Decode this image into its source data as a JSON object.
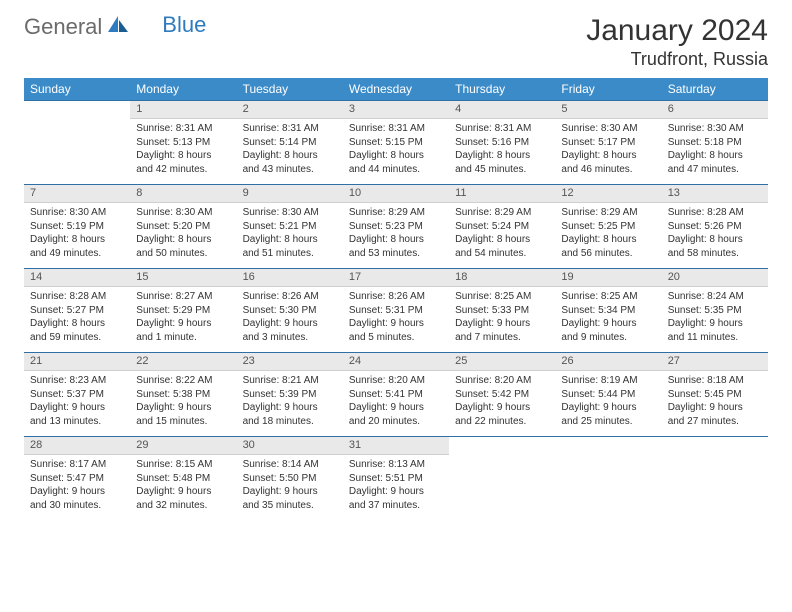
{
  "brand": {
    "part1": "General",
    "part2": "Blue"
  },
  "title": "January 2024",
  "location": "Trudfront, Russia",
  "weekdays": [
    "Sunday",
    "Monday",
    "Tuesday",
    "Wednesday",
    "Thursday",
    "Friday",
    "Saturday"
  ],
  "colors": {
    "header_bg": "#3b8bc9",
    "header_text": "#ffffff",
    "dayrow_bg": "#e9e9e9",
    "dayrow_border": "#2f6fa6",
    "text": "#333333",
    "logo_gray": "#6b6b6b",
    "logo_blue": "#2f7bbf"
  },
  "typography": {
    "title_fontsize": 30,
    "location_fontsize": 18,
    "weekday_fontsize": 12,
    "daynum_fontsize": 11,
    "cell_fontsize": 10
  },
  "calendar": {
    "type": "table",
    "first_day_index": 1,
    "days_in_month": 31,
    "days": [
      {
        "n": 1,
        "sunrise": "8:31 AM",
        "sunset": "5:13 PM",
        "daylight": "8 hours and 42 minutes."
      },
      {
        "n": 2,
        "sunrise": "8:31 AM",
        "sunset": "5:14 PM",
        "daylight": "8 hours and 43 minutes."
      },
      {
        "n": 3,
        "sunrise": "8:31 AM",
        "sunset": "5:15 PM",
        "daylight": "8 hours and 44 minutes."
      },
      {
        "n": 4,
        "sunrise": "8:31 AM",
        "sunset": "5:16 PM",
        "daylight": "8 hours and 45 minutes."
      },
      {
        "n": 5,
        "sunrise": "8:30 AM",
        "sunset": "5:17 PM",
        "daylight": "8 hours and 46 minutes."
      },
      {
        "n": 6,
        "sunrise": "8:30 AM",
        "sunset": "5:18 PM",
        "daylight": "8 hours and 47 minutes."
      },
      {
        "n": 7,
        "sunrise": "8:30 AM",
        "sunset": "5:19 PM",
        "daylight": "8 hours and 49 minutes."
      },
      {
        "n": 8,
        "sunrise": "8:30 AM",
        "sunset": "5:20 PM",
        "daylight": "8 hours and 50 minutes."
      },
      {
        "n": 9,
        "sunrise": "8:30 AM",
        "sunset": "5:21 PM",
        "daylight": "8 hours and 51 minutes."
      },
      {
        "n": 10,
        "sunrise": "8:29 AM",
        "sunset": "5:23 PM",
        "daylight": "8 hours and 53 minutes."
      },
      {
        "n": 11,
        "sunrise": "8:29 AM",
        "sunset": "5:24 PM",
        "daylight": "8 hours and 54 minutes."
      },
      {
        "n": 12,
        "sunrise": "8:29 AM",
        "sunset": "5:25 PM",
        "daylight": "8 hours and 56 minutes."
      },
      {
        "n": 13,
        "sunrise": "8:28 AM",
        "sunset": "5:26 PM",
        "daylight": "8 hours and 58 minutes."
      },
      {
        "n": 14,
        "sunrise": "8:28 AM",
        "sunset": "5:27 PM",
        "daylight": "8 hours and 59 minutes."
      },
      {
        "n": 15,
        "sunrise": "8:27 AM",
        "sunset": "5:29 PM",
        "daylight": "9 hours and 1 minute."
      },
      {
        "n": 16,
        "sunrise": "8:26 AM",
        "sunset": "5:30 PM",
        "daylight": "9 hours and 3 minutes."
      },
      {
        "n": 17,
        "sunrise": "8:26 AM",
        "sunset": "5:31 PM",
        "daylight": "9 hours and 5 minutes."
      },
      {
        "n": 18,
        "sunrise": "8:25 AM",
        "sunset": "5:33 PM",
        "daylight": "9 hours and 7 minutes."
      },
      {
        "n": 19,
        "sunrise": "8:25 AM",
        "sunset": "5:34 PM",
        "daylight": "9 hours and 9 minutes."
      },
      {
        "n": 20,
        "sunrise": "8:24 AM",
        "sunset": "5:35 PM",
        "daylight": "9 hours and 11 minutes."
      },
      {
        "n": 21,
        "sunrise": "8:23 AM",
        "sunset": "5:37 PM",
        "daylight": "9 hours and 13 minutes."
      },
      {
        "n": 22,
        "sunrise": "8:22 AM",
        "sunset": "5:38 PM",
        "daylight": "9 hours and 15 minutes."
      },
      {
        "n": 23,
        "sunrise": "8:21 AM",
        "sunset": "5:39 PM",
        "daylight": "9 hours and 18 minutes."
      },
      {
        "n": 24,
        "sunrise": "8:20 AM",
        "sunset": "5:41 PM",
        "daylight": "9 hours and 20 minutes."
      },
      {
        "n": 25,
        "sunrise": "8:20 AM",
        "sunset": "5:42 PM",
        "daylight": "9 hours and 22 minutes."
      },
      {
        "n": 26,
        "sunrise": "8:19 AM",
        "sunset": "5:44 PM",
        "daylight": "9 hours and 25 minutes."
      },
      {
        "n": 27,
        "sunrise": "8:18 AM",
        "sunset": "5:45 PM",
        "daylight": "9 hours and 27 minutes."
      },
      {
        "n": 28,
        "sunrise": "8:17 AM",
        "sunset": "5:47 PM",
        "daylight": "9 hours and 30 minutes."
      },
      {
        "n": 29,
        "sunrise": "8:15 AM",
        "sunset": "5:48 PM",
        "daylight": "9 hours and 32 minutes."
      },
      {
        "n": 30,
        "sunrise": "8:14 AM",
        "sunset": "5:50 PM",
        "daylight": "9 hours and 35 minutes."
      },
      {
        "n": 31,
        "sunrise": "8:13 AM",
        "sunset": "5:51 PM",
        "daylight": "9 hours and 37 minutes."
      }
    ],
    "labels": {
      "sunrise": "Sunrise:",
      "sunset": "Sunset:",
      "daylight": "Daylight:"
    }
  }
}
